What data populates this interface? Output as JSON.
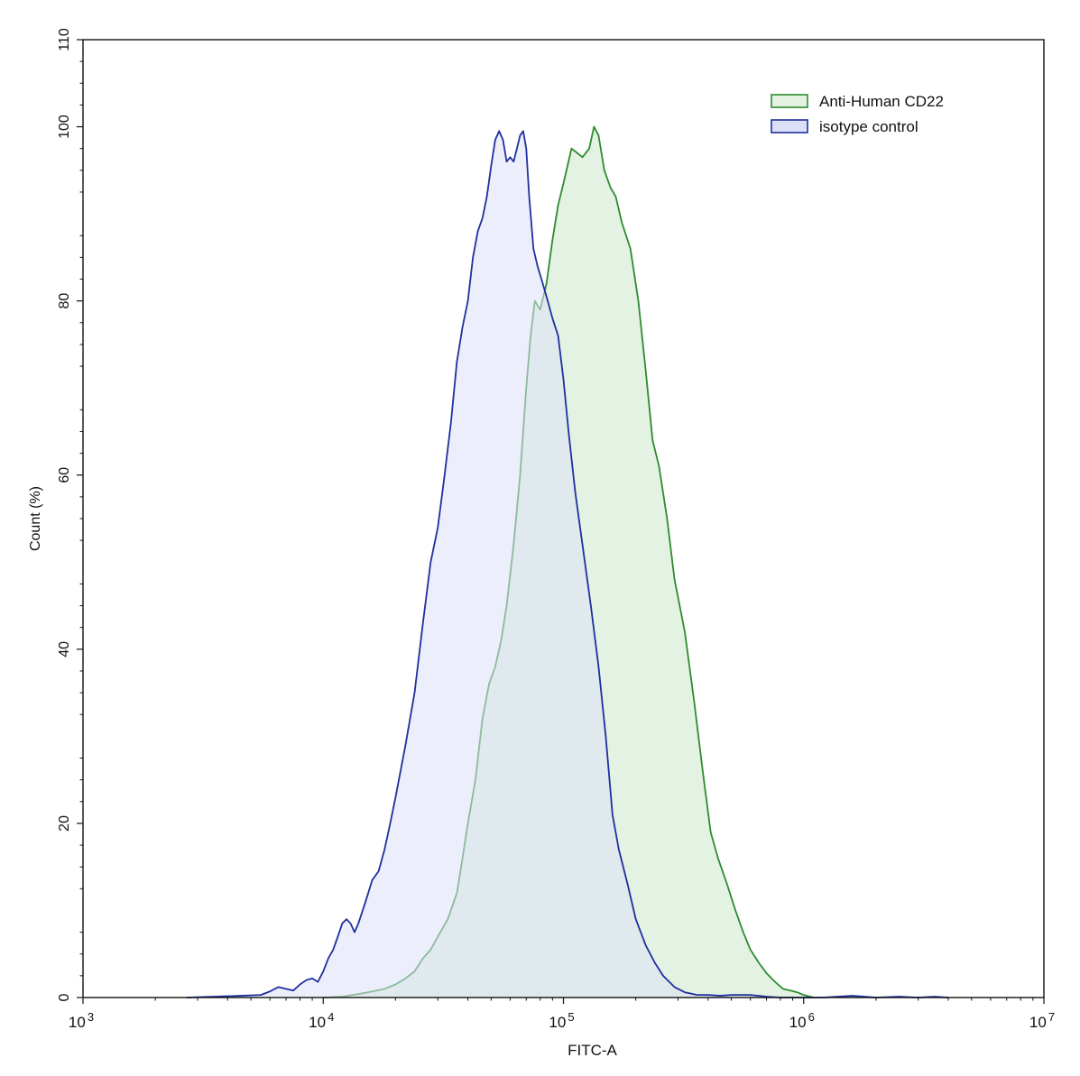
{
  "chart_data": {
    "type": "area",
    "xscale": "log",
    "xlabel": "FITC-A",
    "ylabel": "Count  (%)",
    "xlim": [
      1000,
      10000000
    ],
    "ylim": [
      0,
      110
    ],
    "grid": false,
    "legend_position": "top-right",
    "x_ticks": [
      {
        "base": "10",
        "exp": "3",
        "value": 1000
      },
      {
        "base": "10",
        "exp": "4",
        "value": 10000
      },
      {
        "base": "10",
        "exp": "5",
        "value": 100000
      },
      {
        "base": "10",
        "exp": "6",
        "value": 1000000
      },
      {
        "base": "10",
        "exp": "7",
        "value": 10000000
      }
    ],
    "y_ticks": [
      {
        "label": "0",
        "value": 0
      },
      {
        "label": "20",
        "value": 20
      },
      {
        "label": "40",
        "value": 40
      },
      {
        "label": "60",
        "value": 60
      },
      {
        "label": "80",
        "value": 80
      },
      {
        "label": "100",
        "value": 100
      },
      {
        "label": "110",
        "value": 110
      }
    ],
    "series": [
      {
        "name": "Anti-Human CD22",
        "stroke": "#2e8b2e",
        "fill": "#e3f2e3",
        "points": [
          [
            10000,
            0
          ],
          [
            12000,
            0.1
          ],
          [
            14000,
            0.4
          ],
          [
            16000,
            0.7
          ],
          [
            18000,
            1.0
          ],
          [
            20000,
            1.5
          ],
          [
            22000,
            2.2
          ],
          [
            24000,
            3.0
          ],
          [
            26000,
            4.5
          ],
          [
            28000,
            5.5
          ],
          [
            30000,
            7.0
          ],
          [
            33000,
            9.0
          ],
          [
            36000,
            12.0
          ],
          [
            38000,
            16.0
          ],
          [
            40000,
            20.0
          ],
          [
            43000,
            25.0
          ],
          [
            46000,
            32.0
          ],
          [
            49000,
            36.0
          ],
          [
            52000,
            38.0
          ],
          [
            55000,
            41.0
          ],
          [
            58000,
            45.0
          ],
          [
            62000,
            52.0
          ],
          [
            66000,
            60.0
          ],
          [
            70000,
            70.0
          ],
          [
            73000,
            76.0
          ],
          [
            76000,
            80.0
          ],
          [
            80000,
            79.0
          ],
          [
            85000,
            82.0
          ],
          [
            90000,
            87.0
          ],
          [
            95000,
            91.0
          ],
          [
            100000,
            93.5
          ],
          [
            108000,
            97.5
          ],
          [
            114000,
            97.0
          ],
          [
            120000,
            96.5
          ],
          [
            128000,
            97.5
          ],
          [
            134000,
            100.0
          ],
          [
            140000,
            99.0
          ],
          [
            148000,
            95.0
          ],
          [
            157000,
            93.0
          ],
          [
            165000,
            92.0
          ],
          [
            175000,
            89.0
          ],
          [
            190000,
            86.0
          ],
          [
            205000,
            80.0
          ],
          [
            220000,
            72.0
          ],
          [
            235000,
            64.0
          ],
          [
            250000,
            61.0
          ],
          [
            270000,
            55.0
          ],
          [
            290000,
            48.0
          ],
          [
            320000,
            42.0
          ],
          [
            350000,
            34.0
          ],
          [
            380000,
            26.0
          ],
          [
            410000,
            19.0
          ],
          [
            440000,
            16.0
          ],
          [
            480000,
            13.0
          ],
          [
            520000,
            10.0
          ],
          [
            560000,
            7.5
          ],
          [
            600000,
            5.5
          ],
          [
            650000,
            4.0
          ],
          [
            700000,
            2.8
          ],
          [
            760000,
            1.8
          ],
          [
            820000,
            1.0
          ],
          [
            880000,
            0.8
          ],
          [
            940000,
            0.6
          ],
          [
            1000000,
            0.3
          ],
          [
            1100000,
            0
          ]
        ]
      },
      {
        "name": "isotype control",
        "stroke": "#1f2f9c",
        "fill": "#dde1f7",
        "points": [
          [
            2700,
            0
          ],
          [
            3500,
            0.1
          ],
          [
            4500,
            0.2
          ],
          [
            5500,
            0.3
          ],
          [
            6000,
            0.7
          ],
          [
            6500,
            1.2
          ],
          [
            7000,
            1.0
          ],
          [
            7500,
            0.8
          ],
          [
            8000,
            1.5
          ],
          [
            8500,
            2.0
          ],
          [
            9000,
            2.2
          ],
          [
            9500,
            1.8
          ],
          [
            10000,
            3.0
          ],
          [
            10500,
            4.5
          ],
          [
            11000,
            5.5
          ],
          [
            11500,
            7.0
          ],
          [
            12000,
            8.5
          ],
          [
            12500,
            9.0
          ],
          [
            13000,
            8.5
          ],
          [
            13500,
            7.5
          ],
          [
            14000,
            8.5
          ],
          [
            15000,
            11.0
          ],
          [
            16000,
            13.5
          ],
          [
            17000,
            14.5
          ],
          [
            18000,
            17.0
          ],
          [
            19000,
            20.0
          ],
          [
            20000,
            23.0
          ],
          [
            22000,
            29.0
          ],
          [
            24000,
            35.0
          ],
          [
            26000,
            43.0
          ],
          [
            28000,
            50.0
          ],
          [
            30000,
            54.0
          ],
          [
            32000,
            60.0
          ],
          [
            34000,
            66.0
          ],
          [
            36000,
            73.0
          ],
          [
            38000,
            77.0
          ],
          [
            40000,
            80.0
          ],
          [
            42000,
            85.0
          ],
          [
            44000,
            88.0
          ],
          [
            46000,
            89.5
          ],
          [
            48000,
            92.0
          ],
          [
            50000,
            95.5
          ],
          [
            52000,
            98.5
          ],
          [
            54000,
            99.5
          ],
          [
            56000,
            98.5
          ],
          [
            58000,
            96.0
          ],
          [
            60000,
            96.5
          ],
          [
            62000,
            96.0
          ],
          [
            64000,
            97.5
          ],
          [
            66000,
            99.0
          ],
          [
            68000,
            99.5
          ],
          [
            70000,
            97.5
          ],
          [
            72000,
            92.0
          ],
          [
            75000,
            86.0
          ],
          [
            78000,
            84.0
          ],
          [
            82000,
            82.0
          ],
          [
            86000,
            80.0
          ],
          [
            90000,
            78.0
          ],
          [
            95000,
            76.0
          ],
          [
            100000,
            71.0
          ],
          [
            105000,
            65.0
          ],
          [
            112000,
            58.0
          ],
          [
            120000,
            52.0
          ],
          [
            130000,
            45.0
          ],
          [
            140000,
            38.0
          ],
          [
            150000,
            30.0
          ],
          [
            160000,
            21.0
          ],
          [
            170000,
            17.0
          ],
          [
            185000,
            13.0
          ],
          [
            200000,
            9.0
          ],
          [
            220000,
            6.0
          ],
          [
            240000,
            4.0
          ],
          [
            260000,
            2.5
          ],
          [
            290000,
            1.2
          ],
          [
            320000,
            0.6
          ],
          [
            360000,
            0.3
          ],
          [
            400000,
            0.3
          ],
          [
            450000,
            0.2
          ],
          [
            500000,
            0.3
          ],
          [
            600000,
            0.3
          ],
          [
            700000,
            0.1
          ],
          [
            800000,
            0
          ],
          [
            1200000,
            0
          ],
          [
            1600000,
            0.2
          ],
          [
            2000000,
            0
          ],
          [
            2500000,
            0.1
          ],
          [
            3000000,
            0
          ],
          [
            3500000,
            0.1
          ],
          [
            4000000,
            0
          ]
        ]
      }
    ]
  }
}
